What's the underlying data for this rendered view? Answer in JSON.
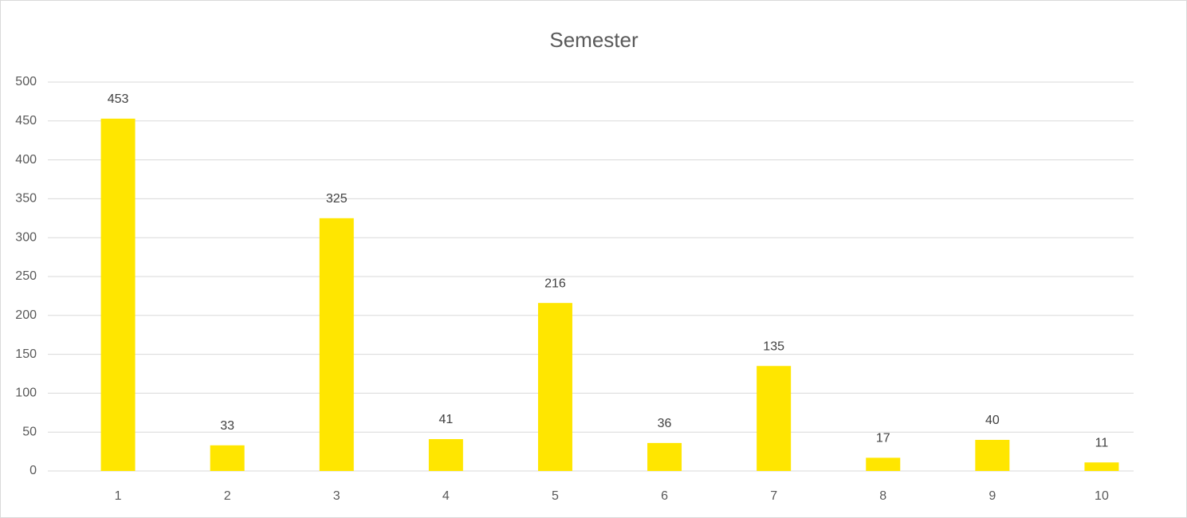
{
  "chart_data": {
    "type": "bar",
    "title": "Semester",
    "categories": [
      "1",
      "2",
      "3",
      "4",
      "5",
      "6",
      "7",
      "8",
      "9",
      "10"
    ],
    "values": [
      453,
      33,
      325,
      41,
      216,
      36,
      135,
      17,
      40,
      11
    ],
    "color": "#ffe600",
    "ylim": [
      0,
      500
    ],
    "yticks": [
      0,
      50,
      100,
      150,
      200,
      250,
      300,
      350,
      400,
      450,
      500
    ],
    "grid": true
  }
}
